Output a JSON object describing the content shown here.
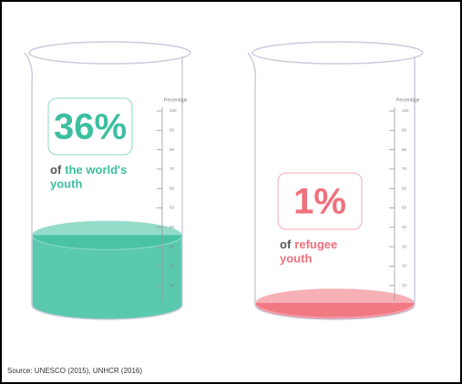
{
  "chart_data": {
    "type": "beaker",
    "axis_label": "Percentage",
    "ylim": [
      0,
      100
    ],
    "yticks": [
      10,
      20,
      30,
      40,
      50,
      60,
      70,
      80,
      90,
      100
    ],
    "beakers": [
      {
        "value": 36,
        "value_label": "36%",
        "prefix": "of",
        "label_lines": [
          "the world's",
          "youth"
        ],
        "color": "#3dbf9f"
      },
      {
        "value": 1,
        "value_label": "1%",
        "prefix": "of",
        "label_lines": [
          "refugee",
          "youth"
        ],
        "color": "#f0707c"
      }
    ],
    "source": "Source: UNESCO (2015), UNHCR (2016)"
  }
}
